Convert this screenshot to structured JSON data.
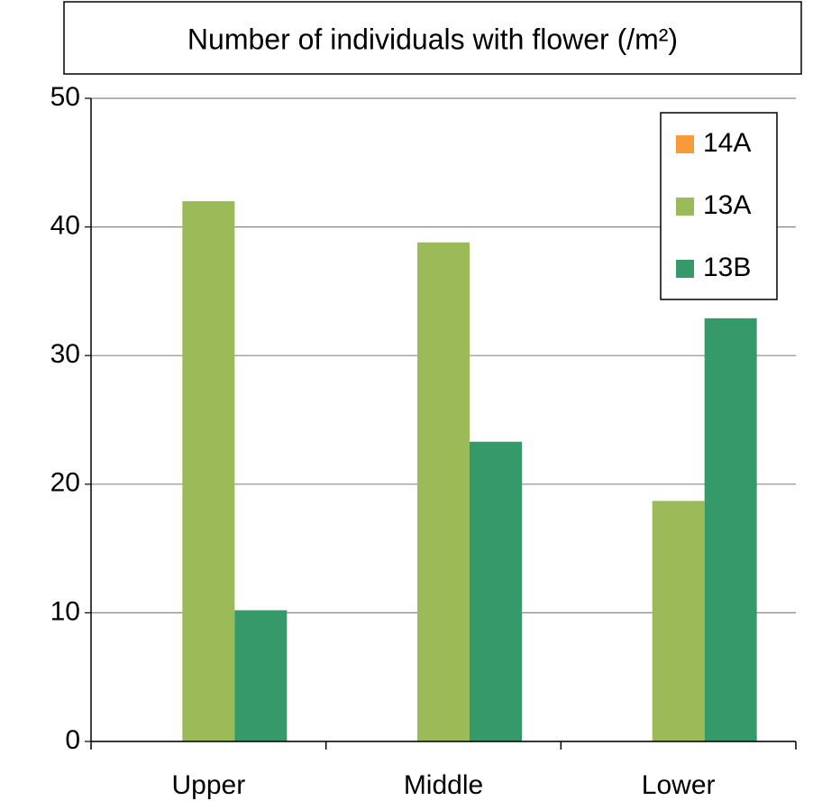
{
  "chart_data": {
    "type": "bar",
    "title": "Number of individuals with flower (/m²)",
    "categories": [
      "Upper",
      "Middle",
      "Lower"
    ],
    "series": [
      {
        "name": "14A",
        "color": "#f79a3a",
        "values": [
          0,
          0,
          0
        ]
      },
      {
        "name": "13A",
        "color": "#9bbb59",
        "values": [
          42.0,
          38.8,
          18.7
        ]
      },
      {
        "name": "13B",
        "color": "#35996a",
        "values": [
          10.2,
          23.3,
          32.9
        ]
      }
    ],
    "ylim": [
      0,
      50
    ],
    "yticks": [
      0,
      10,
      20,
      30,
      40,
      50
    ],
    "grid": true,
    "legend": "upper right"
  }
}
